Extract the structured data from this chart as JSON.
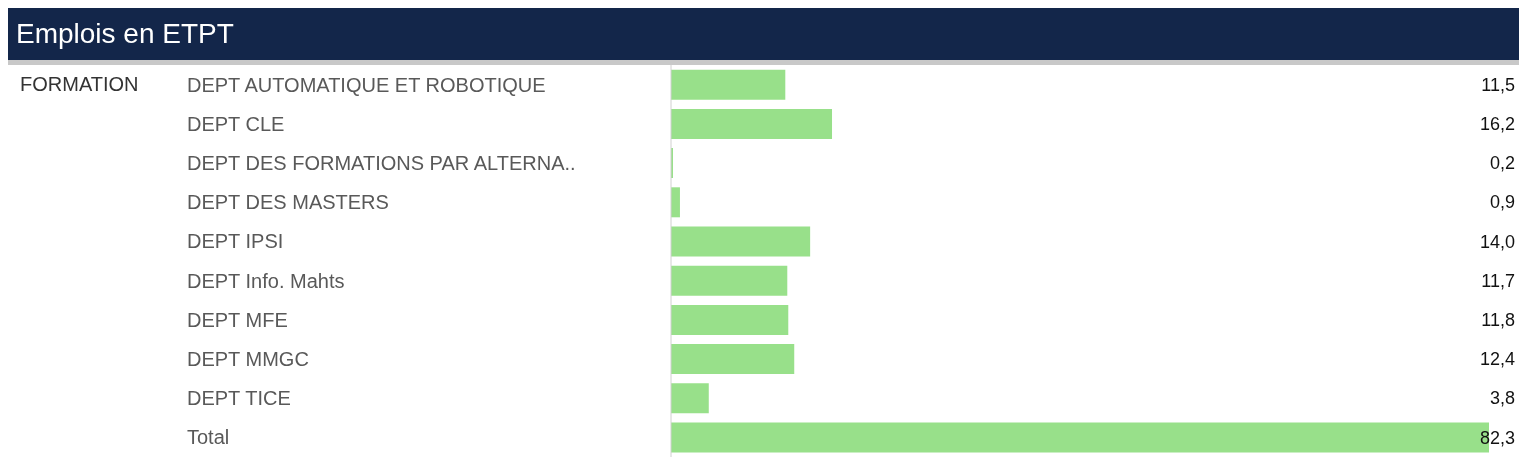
{
  "chart_data": {
    "type": "bar",
    "orientation": "horizontal",
    "title": "Emplois en ETPT",
    "annotations": [
      "FORMATION"
    ],
    "categories": [
      "DEPT AUTOMATIQUE ET ROBOTIQUE",
      "DEPT CLE",
      "DEPT DES FORMATIONS PAR ALTERNA..",
      "DEPT DES MASTERS",
      "DEPT IPSI",
      "DEPT Info. Mahts",
      "DEPT MFE",
      "DEPT MMGC",
      "DEPT TICE",
      "Total"
    ],
    "values": [
      11.5,
      16.2,
      0.2,
      0.9,
      14.0,
      11.7,
      11.8,
      12.4,
      3.8,
      82.3
    ],
    "value_labels": [
      "11,5",
      "16,2",
      "0,2",
      "0,9",
      "14,0",
      "11,7",
      "11,8",
      "12,4",
      "3,8",
      "82,3"
    ],
    "color": "#98e08a"
  }
}
